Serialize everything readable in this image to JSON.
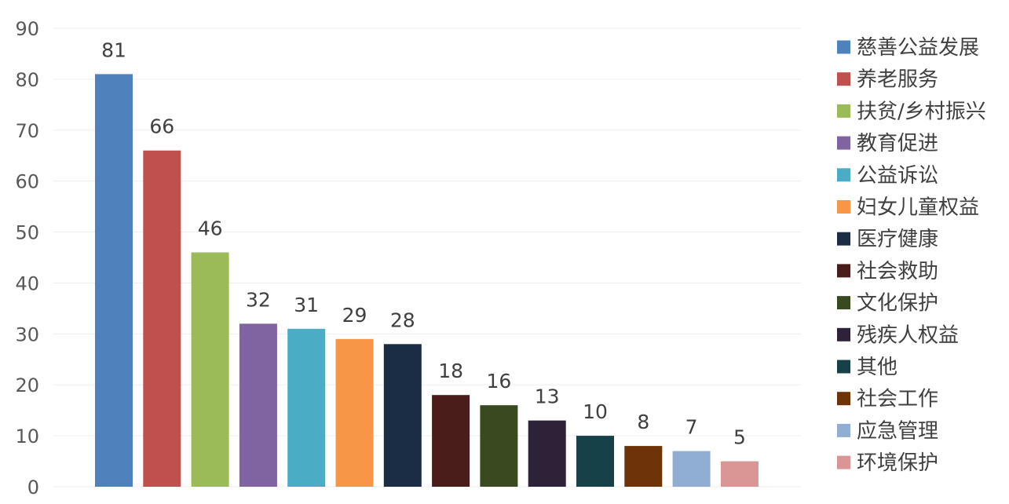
{
  "chart_data": {
    "type": "bar",
    "categories": [
      "慈善公益发展",
      "养老服务",
      "扶贫/乡村振兴",
      "教育促进",
      "公益诉讼",
      "妇女儿童权益",
      "医疗健康",
      "社会救助",
      "文化保护",
      "残疾人权益",
      "其他",
      "社会工作",
      "应急管理",
      "环境保护"
    ],
    "values": [
      81,
      66,
      46,
      32,
      31,
      29,
      28,
      18,
      16,
      13,
      10,
      8,
      7,
      5
    ],
    "colors": [
      "#4f81bd",
      "#c0504d",
      "#9bbb59",
      "#8064a2",
      "#4bacc6",
      "#f79646",
      "#1b2c45",
      "#4a1c1a",
      "#3a4a20",
      "#2e2238",
      "#174149",
      "#6e3408",
      "#90aed4",
      "#d99694"
    ],
    "ylim": [
      0,
      90
    ],
    "yticks": [
      0,
      10,
      20,
      30,
      40,
      50,
      60,
      70,
      80,
      90
    ],
    "grid": true,
    "data_labels": true,
    "legend_position": "right"
  }
}
